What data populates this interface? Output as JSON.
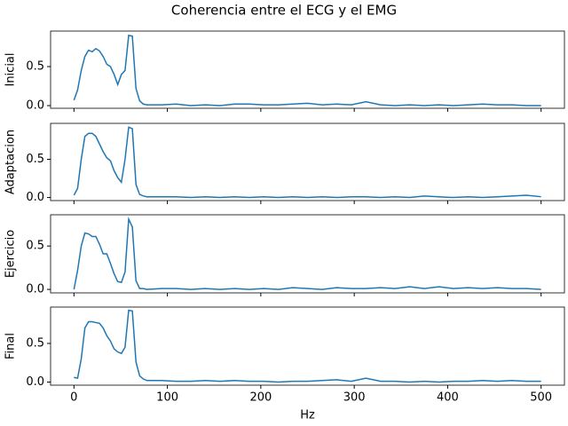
{
  "title": "Coherencia entre el ECG y el EMG",
  "chart_data": [
    {
      "type": "line",
      "ylabel": "Inicial",
      "color": "#1f77b4",
      "xlim": [
        -25,
        525
      ],
      "xticks": [
        0,
        100,
        200,
        300,
        400,
        500
      ],
      "ylim": [
        -0.034,
        0.955
      ],
      "yticks": [
        {
          "value": 0,
          "label": "0.0"
        },
        {
          "value": 0.5,
          "label": "0.5"
        }
      ],
      "x": [
        0,
        3.90625,
        7.8125,
        11.71875,
        15.625,
        19.53125,
        23.4375,
        27.34375,
        31.25,
        35.15625,
        39.0625,
        42.96875,
        46.875,
        50.78125,
        54.6875,
        58.59375,
        62.5,
        66.40625,
        70.3125,
        74.21875,
        78.125,
        93.75,
        109.375,
        125,
        140.625,
        156.25,
        171.875,
        187.5,
        203.125,
        218.75,
        234.375,
        250,
        265.625,
        281.25,
        296.875,
        312.5,
        328.125,
        343.75,
        359.375,
        375,
        390.625,
        406.25,
        421.875,
        437.5,
        453.125,
        468.75,
        484.375,
        500
      ],
      "values": [
        0.07,
        0.2,
        0.45,
        0.63,
        0.71,
        0.69,
        0.73,
        0.7,
        0.63,
        0.53,
        0.5,
        0.4,
        0.27,
        0.4,
        0.45,
        0.9,
        0.89,
        0.22,
        0.06,
        0.02,
        0.01,
        0.01,
        0.02,
        0.0,
        0.01,
        0.0,
        0.02,
        0.02,
        0.01,
        0.01,
        0.02,
        0.03,
        0.01,
        0.02,
        0.01,
        0.05,
        0.01,
        0.0,
        0.01,
        0.0,
        0.01,
        0.0,
        0.01,
        0.02,
        0.01,
        0.01,
        0.0,
        0.0
      ]
    },
    {
      "type": "line",
      "ylabel": "Adaptacion",
      "color": "#1f77b4",
      "xlim": [
        -25,
        525
      ],
      "xticks": [
        0,
        100,
        200,
        300,
        400,
        500
      ],
      "ylim": [
        -0.04,
        0.97
      ],
      "yticks": [
        {
          "value": 0,
          "label": "0.0"
        },
        {
          "value": 0.5,
          "label": "0.5"
        }
      ],
      "x": [
        0,
        3.90625,
        7.8125,
        11.71875,
        15.625,
        19.53125,
        23.4375,
        27.34375,
        31.25,
        35.15625,
        39.0625,
        42.96875,
        46.875,
        50.78125,
        54.6875,
        58.59375,
        62.5,
        66.40625,
        70.3125,
        74.21875,
        78.125,
        93.75,
        109.375,
        125,
        140.625,
        156.25,
        171.875,
        187.5,
        203.125,
        218.75,
        234.375,
        250,
        265.625,
        281.25,
        296.875,
        312.5,
        328.125,
        343.75,
        359.375,
        375,
        390.625,
        406.25,
        421.875,
        437.5,
        453.125,
        468.75,
        484.375,
        500
      ],
      "values": [
        0.03,
        0.12,
        0.5,
        0.8,
        0.84,
        0.84,
        0.8,
        0.7,
        0.6,
        0.52,
        0.48,
        0.35,
        0.26,
        0.2,
        0.5,
        0.92,
        0.9,
        0.17,
        0.04,
        0.02,
        0.01,
        0.01,
        0.01,
        0.0,
        0.01,
        0.0,
        0.01,
        0.0,
        0.01,
        0.0,
        0.01,
        0.0,
        0.01,
        0.0,
        0.01,
        0.01,
        0.0,
        0.01,
        0.0,
        0.02,
        0.01,
        0.0,
        0.01,
        0.0,
        0.01,
        0.02,
        0.03,
        0.01
      ]
    },
    {
      "type": "line",
      "ylabel": "Ejercicio",
      "color": "#1f77b4",
      "xlim": [
        -25,
        525
      ],
      "xticks": [
        0,
        100,
        200,
        300,
        400,
        500
      ],
      "ylim": [
        -0.04,
        0.86
      ],
      "yticks": [
        {
          "value": 0,
          "label": "0.0"
        },
        {
          "value": 0.5,
          "label": "0.5"
        }
      ],
      "x": [
        0,
        3.90625,
        7.8125,
        11.71875,
        15.625,
        19.53125,
        23.4375,
        27.34375,
        31.25,
        35.15625,
        39.0625,
        42.96875,
        46.875,
        50.78125,
        54.6875,
        58.59375,
        62.5,
        66.40625,
        70.3125,
        74.21875,
        78.125,
        93.75,
        109.375,
        125,
        140.625,
        156.25,
        171.875,
        187.5,
        203.125,
        218.75,
        234.375,
        250,
        265.625,
        281.25,
        296.875,
        312.5,
        328.125,
        343.75,
        359.375,
        375,
        390.625,
        406.25,
        421.875,
        437.5,
        453.125,
        468.75,
        484.375,
        500
      ],
      "values": [
        0.0,
        0.22,
        0.5,
        0.65,
        0.64,
        0.61,
        0.61,
        0.52,
        0.41,
        0.41,
        0.3,
        0.18,
        0.09,
        0.08,
        0.2,
        0.81,
        0.72,
        0.1,
        0.01,
        0.01,
        0.0,
        0.01,
        0.01,
        0.0,
        0.01,
        0.0,
        0.01,
        0.0,
        0.01,
        0.0,
        0.02,
        0.01,
        0.0,
        0.02,
        0.01,
        0.01,
        0.02,
        0.01,
        0.03,
        0.01,
        0.03,
        0.01,
        0.02,
        0.01,
        0.02,
        0.01,
        0.01,
        0.0
      ]
    },
    {
      "type": "line",
      "ylabel": "Final",
      "xlabel": "Hz",
      "color": "#1f77b4",
      "xlim": [
        -25,
        525
      ],
      "xticks": [
        0,
        100,
        200,
        300,
        400,
        500
      ],
      "ylim": [
        -0.04,
        0.97
      ],
      "yticks": [
        {
          "value": 0,
          "label": "0.0"
        },
        {
          "value": 0.5,
          "label": "0.5"
        }
      ],
      "x": [
        0,
        3.90625,
        7.8125,
        11.71875,
        15.625,
        19.53125,
        23.4375,
        27.34375,
        31.25,
        35.15625,
        39.0625,
        42.96875,
        46.875,
        50.78125,
        54.6875,
        58.59375,
        62.5,
        66.40625,
        70.3125,
        74.21875,
        78.125,
        93.75,
        109.375,
        125,
        140.625,
        156.25,
        171.875,
        187.5,
        203.125,
        218.75,
        234.375,
        250,
        265.625,
        281.25,
        296.875,
        312.5,
        328.125,
        343.75,
        359.375,
        375,
        390.625,
        406.25,
        421.875,
        437.5,
        453.125,
        468.75,
        484.375,
        500
      ],
      "values": [
        0.06,
        0.05,
        0.3,
        0.7,
        0.78,
        0.78,
        0.77,
        0.76,
        0.7,
        0.6,
        0.53,
        0.43,
        0.39,
        0.37,
        0.45,
        0.93,
        0.92,
        0.26,
        0.08,
        0.04,
        0.02,
        0.02,
        0.01,
        0.01,
        0.02,
        0.01,
        0.02,
        0.01,
        0.01,
        0.0,
        0.01,
        0.01,
        0.02,
        0.03,
        0.01,
        0.05,
        0.01,
        0.01,
        0.0,
        0.01,
        0.0,
        0.01,
        0.01,
        0.02,
        0.01,
        0.02,
        0.01,
        0.01
      ]
    }
  ]
}
